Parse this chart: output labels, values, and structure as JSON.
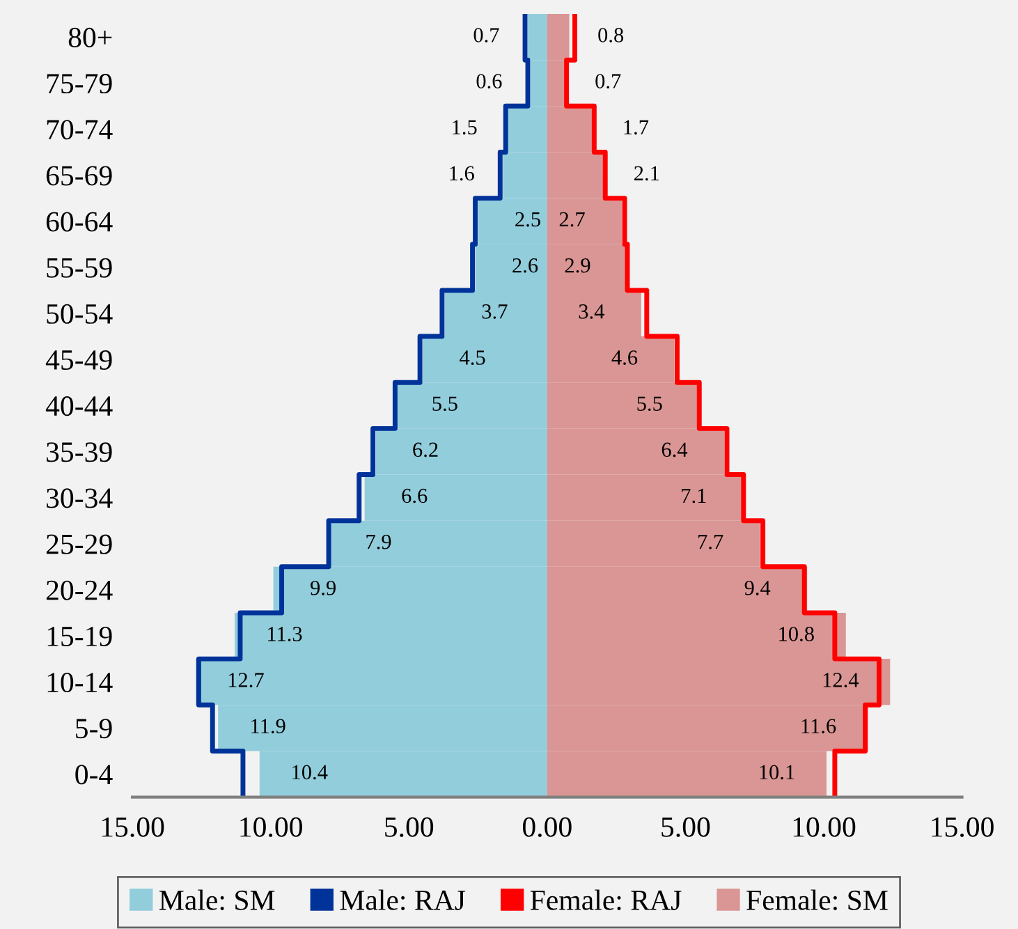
{
  "chart_data": {
    "type": "bar",
    "orientation": "horizontal",
    "categories": [
      "80+",
      "75-79",
      "70-74",
      "65-69",
      "60-64",
      "55-59",
      "50-54",
      "45-49",
      "40-44",
      "35-39",
      "30-34",
      "25-29",
      "20-24",
      "15-19",
      "10-14",
      "5-9",
      "0-4"
    ],
    "series": [
      {
        "name": "Male: SM",
        "color": "#92cddc",
        "base": [
          -0.7,
          -0.6,
          -1.5,
          -1.6,
          -2.5,
          -2.6,
          -3.7,
          -4.5,
          -5.5,
          -6.2,
          -6.6,
          -7.9,
          -9.9,
          -11.3,
          -12.7,
          -11.9,
          -10.4
        ],
        "values": [
          0.7,
          0.6,
          1.5,
          1.6,
          2.5,
          2.6,
          3.7,
          4.5,
          5.5,
          6.2,
          6.6,
          7.9,
          9.9,
          11.3,
          12.7,
          11.9,
          10.4
        ],
        "value_labels": [
          "0.7",
          "0.6",
          "1.5",
          "1.6",
          "2.5",
          "2.6",
          "3.7",
          "4.5",
          "5.5",
          "6.2",
          "6.6",
          "7.9",
          "9.9",
          "11.3",
          "12.7",
          "11.9",
          "10.4"
        ]
      },
      {
        "name": "Male: RAJ",
        "type": "step",
        "color": "#003399",
        "values": [
          -0.8,
          -0.7,
          -1.5,
          -1.7,
          -2.6,
          -2.7,
          -3.8,
          -4.6,
          -5.5,
          -6.3,
          -6.8,
          -7.9,
          -9.6,
          -11.1,
          -12.6,
          -12.1,
          -11.0
        ]
      },
      {
        "name": "Female: RAJ",
        "type": "step",
        "color": "#ff0000",
        "values": [
          1.0,
          0.7,
          1.7,
          2.1,
          2.8,
          2.9,
          3.6,
          4.7,
          5.5,
          6.5,
          7.1,
          7.8,
          9.3,
          10.4,
          12.0,
          11.5,
          10.4
        ]
      },
      {
        "name": "Female: SM",
        "color": "#da9694",
        "values": [
          0.8,
          0.7,
          1.7,
          2.1,
          2.7,
          2.9,
          3.4,
          4.6,
          5.5,
          6.4,
          7.1,
          7.7,
          9.4,
          10.8,
          12.4,
          11.6,
          10.1
        ],
        "value_labels": [
          "0.8",
          "0.7",
          "1.7",
          "2.1",
          "2.7",
          "2.9",
          "3.4",
          "4.6",
          "5.5",
          "6.4",
          "7.1",
          "7.7",
          "9.4",
          "10.8",
          "12.4",
          "11.6",
          "10.1"
        ]
      }
    ],
    "xlim": [
      -15,
      15
    ],
    "xticks": [
      {
        "value": -15,
        "label": "15.00"
      },
      {
        "value": -10,
        "label": "10.00"
      },
      {
        "value": -5,
        "label": "5.00"
      },
      {
        "value": 0,
        "label": "0.00"
      },
      {
        "value": 5,
        "label": "5.00"
      },
      {
        "value": 10,
        "label": "10.00"
      },
      {
        "value": 15,
        "label": "15.00"
      }
    ],
    "legend": "bottom"
  }
}
